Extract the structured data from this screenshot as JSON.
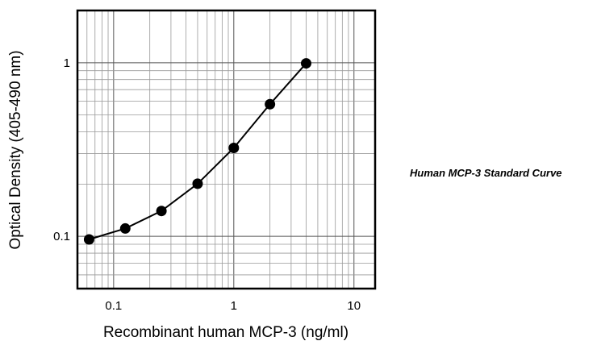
{
  "chart_data": {
    "type": "line",
    "title": "Human MCP-3 Standard Curve",
    "xlabel": "Recombinant human MCP-3 (ng/ml)",
    "ylabel": "Optical Density (405-490 nm)",
    "x_scale": "log",
    "y_scale": "log",
    "xlim": [
      0.05,
      15
    ],
    "ylim": [
      0.05,
      2
    ],
    "x_ticks": [
      {
        "value": 0.1,
        "label": "0.1"
      },
      {
        "value": 1,
        "label": "1"
      },
      {
        "value": 10,
        "label": "10"
      }
    ],
    "y_ticks": [
      {
        "value": 0.1,
        "label": "0.1"
      },
      {
        "value": 1,
        "label": "1"
      }
    ],
    "grid": true,
    "series": [
      {
        "x": [
          0.0625,
          0.125,
          0.25,
          0.5,
          1,
          2,
          4
        ],
        "y": [
          0.096,
          0.111,
          0.14,
          0.201,
          0.323,
          0.577,
          0.992
        ],
        "color": "#000000"
      }
    ]
  }
}
